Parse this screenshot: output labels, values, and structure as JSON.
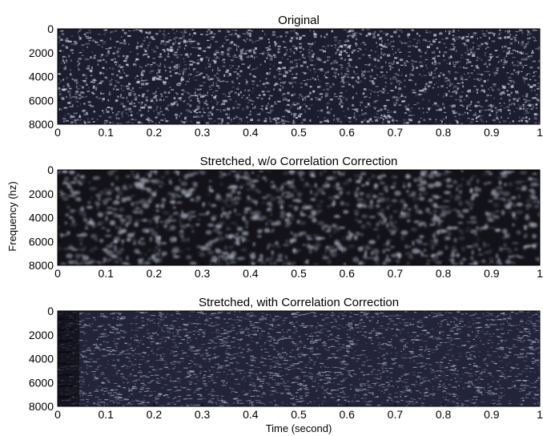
{
  "figure": {
    "ylabel": "Frequency (hz)",
    "xlabel": "Time (second)"
  },
  "chart_data": [
    {
      "type": "heatmap",
      "title": "Original",
      "x_ticks": [
        "0",
        "0.1",
        "0.2",
        "0.3",
        "0.4",
        "0.5",
        "0.6",
        "0.7",
        "0.8",
        "0.9",
        "1"
      ],
      "y_ticks": [
        "0",
        "2000",
        "4000",
        "6000",
        "8000"
      ],
      "xlim": [
        0,
        1
      ],
      "ylim": [
        0,
        8000
      ],
      "y_inverted": true,
      "texture": "fine white speckles on dark navy background, uniform intensity",
      "colors": {
        "background": "#1c1d2e",
        "speckle": "#e8ecff"
      }
    },
    {
      "type": "heatmap",
      "title": "Stretched, w/o Correlation Correction",
      "x_ticks": [
        "0",
        "0.1",
        "0.2",
        "0.3",
        "0.4",
        "0.5",
        "0.6",
        "0.7",
        "0.8",
        "0.9",
        "1"
      ],
      "y_ticks": [
        "0",
        "2000",
        "4000",
        "6000",
        "8000"
      ],
      "xlim": [
        0,
        1
      ],
      "ylim": [
        0,
        8000
      ],
      "y_inverted": true,
      "texture": "coarser blurred speckle blobs on near-black background",
      "colors": {
        "background": "#121218",
        "speckle": "#c8ccdf"
      }
    },
    {
      "type": "heatmap",
      "title": "Stretched, with Correlation Correction",
      "x_ticks": [
        "0",
        "0.1",
        "0.2",
        "0.3",
        "0.4",
        "0.5",
        "0.6",
        "0.7",
        "0.8",
        "0.9",
        "1"
      ],
      "y_ticks": [
        "0",
        "2000",
        "4000",
        "6000",
        "8000"
      ],
      "xlim": [
        0,
        1
      ],
      "ylim": [
        0,
        8000
      ],
      "y_inverted": true,
      "texture": "fine horizontal streaky speckle, darker band near t=0",
      "colors": {
        "background": "#23243a",
        "speckle": "#dfe3f7"
      }
    }
  ]
}
